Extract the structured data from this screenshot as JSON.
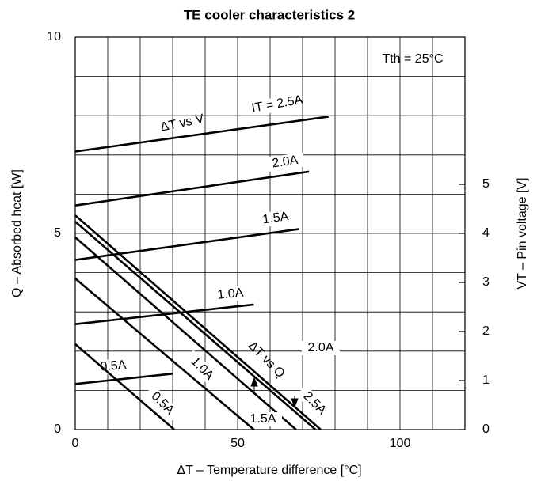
{
  "chart_data": {
    "type": "line",
    "title": "TE cooler characteristics 2",
    "xlabel": "ΔT – Temperature difference [°C]",
    "ylabel": "Q – Absorbed heat [W]",
    "y2label": "VT – Pin voltage [V]",
    "xlim": [
      0,
      120
    ],
    "xticks": [
      0,
      50,
      100
    ],
    "ylim": [
      0,
      10
    ],
    "yticks": [
      0,
      5,
      10
    ],
    "y2lim": [
      0,
      8
    ],
    "y2ticks": [
      0,
      1,
      2,
      3,
      4,
      5
    ],
    "xgrid": [
      0,
      10,
      20,
      30,
      40,
      50,
      60,
      70,
      80,
      90,
      100,
      110,
      120
    ],
    "ygrid": [
      0,
      1,
      2,
      3,
      4,
      5,
      6,
      7,
      8,
      9,
      10
    ],
    "grid": true,
    "color": "#000000",
    "annotations": [
      "Tth = 25°C",
      "ΔT vs V",
      "ΔT vs Q"
    ],
    "series": [
      {
        "name": "IT = 2.5A",
        "axis": "y2",
        "x": [
          0,
          78
        ],
        "values": [
          5.67,
          6.38
        ]
      },
      {
        "name": "2.0A",
        "axis": "y2",
        "x": [
          0,
          72
        ],
        "values": [
          4.57,
          5.26
        ]
      },
      {
        "name": "1.5A",
        "axis": "y2",
        "x": [
          0,
          69
        ],
        "values": [
          3.46,
          4.09
        ]
      },
      {
        "name": "1.0A",
        "axis": "y2",
        "x": [
          0,
          55
        ],
        "values": [
          2.15,
          2.55
        ]
      },
      {
        "name": "0.5A",
        "axis": "y2",
        "x": [
          0,
          30
        ],
        "values": [
          0.93,
          1.14
        ]
      },
      {
        "name": "2.5A",
        "x": [
          0,
          75.6
        ],
        "values": [
          5.46,
          0
        ]
      },
      {
        "name": "2.0A",
        "x": [
          0,
          74
        ],
        "values": [
          5.3,
          0
        ]
      },
      {
        "name": "1.5A",
        "x": [
          0,
          68
        ],
        "values": [
          4.9,
          0
        ]
      },
      {
        "name": "1.0A",
        "x": [
          0,
          55
        ],
        "values": [
          3.85,
          0
        ]
      },
      {
        "name": "0.5A",
        "x": [
          0,
          30.5
        ],
        "values": [
          2.18,
          0
        ]
      }
    ]
  }
}
